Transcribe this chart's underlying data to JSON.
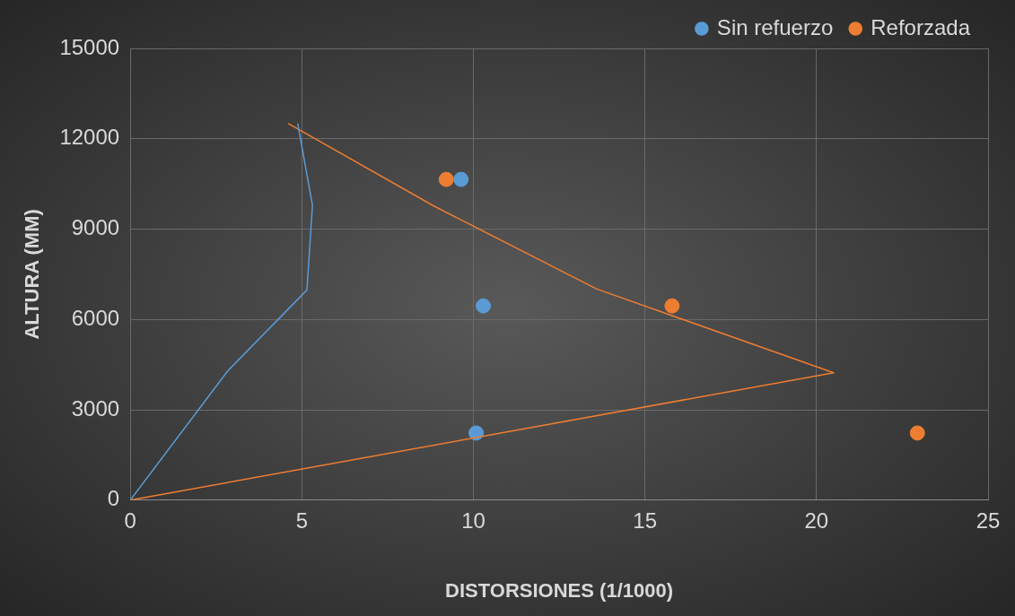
{
  "chart_data": {
    "type": "line",
    "xlabel": "DISTORSIONES (1/1000)",
    "ylabel": "ALTURA (MM)",
    "xlim": [
      0,
      25
    ],
    "xticks": [
      0,
      5,
      10,
      15,
      20,
      25
    ],
    "ylim": [
      0,
      15000
    ],
    "yticks": [
      0,
      3000,
      6000,
      9000,
      12000,
      15000
    ],
    "grid": true,
    "legend": "top right",
    "line_style": "solid",
    "series": [
      {
        "name": "Sin refuerzo",
        "color": "#5b9bd5",
        "marker": "none",
        "x": [
          0,
          2.84,
          5.15,
          5.31,
          4.88
        ],
        "values": [
          0,
          4290,
          6980,
          9790,
          12510
        ]
      },
      {
        "name": "Reforzada",
        "color": "#ed7d31",
        "marker": "none",
        "x": [
          0,
          20.5,
          13.6,
          8.86,
          4.6
        ],
        "values": [
          0,
          4230,
          7010,
          9760,
          12510
        ]
      },
      {
        "color": "#5b9bd5",
        "type": "scatter",
        "marker": "circle",
        "x": [
          9.64,
          10.29,
          10.08,
          null
        ],
        "values": [
          10650,
          6450,
          2230,
          null
        ]
      },
      {
        "color": "#ed7d31",
        "type": "scatter",
        "marker": "circle",
        "x": [
          9.21,
          15.79,
          22.94
        ],
        "values": [
          10650,
          6450,
          2230
        ]
      }
    ]
  }
}
